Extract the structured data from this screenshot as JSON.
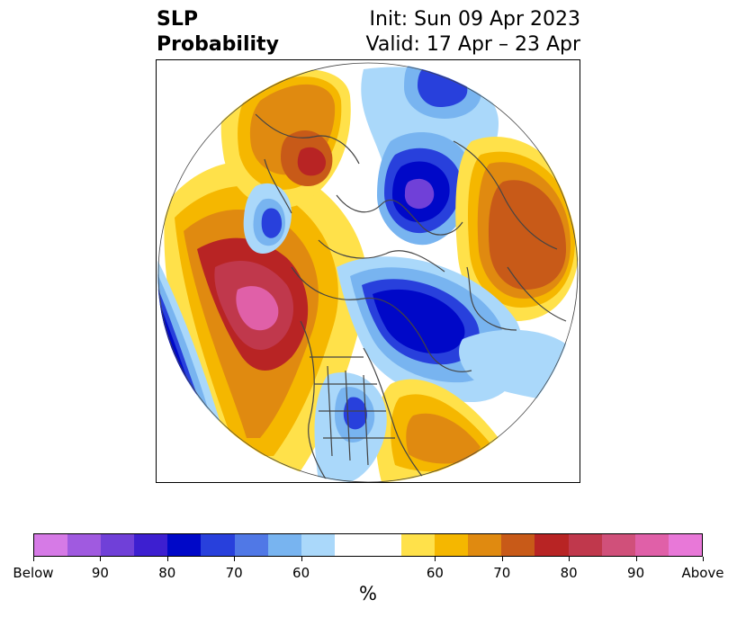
{
  "title": {
    "left_line1": "SLP",
    "left_line2": "Probability",
    "right_line1": "Init: Sun 09 Apr 2023",
    "right_line2": "Valid: 17 Apr – 23 Apr"
  },
  "colorbar": {
    "colors": [
      "#d67ae6",
      "#a05ae0",
      "#7040d8",
      "#3d1fd0",
      "#0008c8",
      "#2840dc",
      "#5078e6",
      "#78b4f0",
      "#aad8fa",
      "#ffffff",
      "#ffffff",
      "#ffe14a",
      "#f5b700",
      "#e08a10",
      "#c85a18",
      "#b82424",
      "#c0384c",
      "#d0507a",
      "#e060a8",
      "#e878d8"
    ],
    "tick_labels": [
      "Below",
      "90",
      "80",
      "70",
      "60",
      "60",
      "70",
      "80",
      "90",
      "Above"
    ],
    "unit": "%"
  },
  "map": {
    "projection": "north-polar-stereographic",
    "variable": "SLP probability",
    "palette": {
      "below_60": "#aad8fa",
      "below_70": "#78b4f0",
      "below_80": "#2840dc",
      "below_90": "#0008c8",
      "below_max": "#7040d8",
      "above_60": "#ffe14a",
      "above_70": "#f5b700",
      "above_75": "#e08a10",
      "above_80": "#c85a18",
      "above_85": "#b82424",
      "above_90": "#c0384c",
      "above_max": "#e060a8",
      "coast": "#444444"
    }
  }
}
